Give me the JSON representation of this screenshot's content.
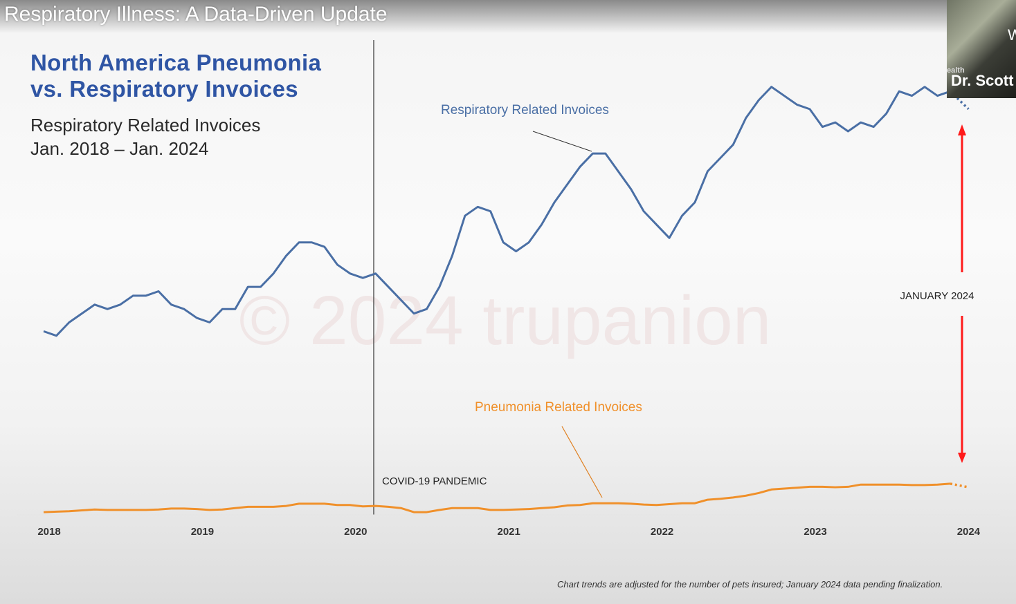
{
  "slide_title": "Respiratory Illness: A Data-Driven Update",
  "webcam": {
    "name": "Dr. Scott",
    "org_partial": "ealth",
    "partial_letter": "W"
  },
  "footnote": "Chart trends are adjusted for the number of pets insured; January 2024 data pending finalization.",
  "watermark": "© 2024 trupanion",
  "colors": {
    "title": "#2f55a4",
    "respiratory": "#4a6fa5",
    "pneumonia": "#f0902a",
    "arrow": "#ff1a1a"
  },
  "chart_data": {
    "type": "line",
    "title_line1": "North America Pneumonia",
    "title_line2": "vs. Respiratory Invoices",
    "subtitle_line1": "Respiratory Related Invoices",
    "subtitle_line2": "Jan. 2018 – Jan. 2024",
    "x_range": [
      "2018-01",
      "2024-01"
    ],
    "x_step": "month",
    "x_ticks": [
      "2018",
      "2019",
      "2020",
      "2021",
      "2022",
      "2023",
      "2024"
    ],
    "y_axis": "none (relative index, unlabeled)",
    "grid": false,
    "series": [
      {
        "name": "Respiratory Related Invoices",
        "color": "#4a6fa5",
        "last_point_pending": true,
        "values": [
          41,
          40,
          43,
          45,
          47,
          46,
          47,
          49,
          49,
          50,
          47,
          46,
          44,
          43,
          46,
          46,
          51,
          51,
          54,
          58,
          61,
          61,
          60,
          56,
          54,
          53,
          54,
          51,
          48,
          45,
          46,
          51,
          58,
          67,
          69,
          68,
          61,
          59,
          61,
          65,
          70,
          74,
          78,
          81,
          81,
          77,
          73,
          68,
          65,
          62,
          67,
          70,
          77,
          80,
          83,
          89,
          93,
          96,
          94,
          92,
          91,
          87,
          88,
          86,
          88,
          87,
          90,
          95,
          94,
          96,
          94,
          95,
          91
        ]
      },
      {
        "name": "Pneumonia Related Invoices",
        "color": "#f0902a",
        "last_point_pending": true,
        "values": [
          0.3,
          0.4,
          0.5,
          0.7,
          0.9,
          0.8,
          0.8,
          0.8,
          0.8,
          0.9,
          1.1,
          1.1,
          1.0,
          0.8,
          0.9,
          1.2,
          1.5,
          1.5,
          1.5,
          1.7,
          2.2,
          2.2,
          2.2,
          1.9,
          1.9,
          1.6,
          1.7,
          1.5,
          1.2,
          0.3,
          0.3,
          0.8,
          1.2,
          1.2,
          1.2,
          0.8,
          0.8,
          0.9,
          1.0,
          1.2,
          1.4,
          1.8,
          1.9,
          2.3,
          2.3,
          2.3,
          2.2,
          2.0,
          1.9,
          2.1,
          2.3,
          2.3,
          3.1,
          3.3,
          3.6,
          4.0,
          4.6,
          5.4,
          5.6,
          5.8,
          6.0,
          6.0,
          5.9,
          6.0,
          6.5,
          6.5,
          6.5,
          6.5,
          6.4,
          6.4,
          6.5,
          6.7,
          5.9
        ]
      }
    ],
    "annotations": {
      "pandemic": {
        "label": "COVID-19 PANDEMIC",
        "month": "2020-03"
      },
      "january": {
        "label": "JANUARY 2024"
      }
    }
  }
}
